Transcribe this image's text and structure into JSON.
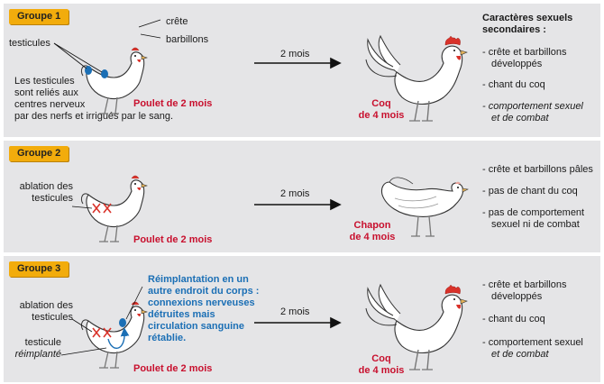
{
  "groups": [
    {
      "tag": "Groupe 1",
      "crete": "crête",
      "barbillons": "barbillons",
      "testicules": "testicules",
      "info": [
        "Les testicules",
        "sont reliés aux",
        "centres nerveux",
        "par des nerfs et irrigués par le sang."
      ],
      "before": "Poulet de 2 mois",
      "arrow": "2 mois",
      "after": [
        "Coq",
        "de 4 mois"
      ],
      "traits_title": [
        "Caractères sexuels",
        "secondaires :"
      ],
      "traits": [
        [
          "- crête et barbillons",
          "développés"
        ],
        [
          "- chant du coq"
        ],
        [
          "- comportement sexuel",
          "et de combat"
        ]
      ]
    },
    {
      "tag": "Groupe 2",
      "ablation": [
        "ablation des",
        "testicules"
      ],
      "before": "Poulet de 2 mois",
      "arrow": "2 mois",
      "after": [
        "Chapon",
        "de 4 mois"
      ],
      "traits": [
        [
          "- crête et barbillons pâles"
        ],
        [
          "- pas de chant du coq"
        ],
        [
          "- pas de comportement",
          "sexuel ni de combat"
        ]
      ]
    },
    {
      "tag": "Groupe 3",
      "ablation": [
        "ablation des",
        "testicules"
      ],
      "reimplant": [
        "testicule",
        "réimplanté"
      ],
      "note": [
        "Réimplantation en un",
        "autre endroit du corps :",
        "connexions nerveuses",
        "détruites mais",
        "circulation sanguine",
        "rétablie."
      ],
      "before": "Poulet de 2 mois",
      "arrow": "2 mois",
      "after": [
        "Coq",
        "de 4 mois"
      ],
      "traits": [
        [
          "- crête et barbillons",
          "développés"
        ],
        [
          "- chant du coq"
        ],
        [
          "- comportement sexuel",
          "et de combat"
        ]
      ]
    }
  ],
  "colors": {
    "panel": "#e5e5e7",
    "tag": "#f2ac0c",
    "red": "#c8102e",
    "blue": "#1b6fb5"
  }
}
